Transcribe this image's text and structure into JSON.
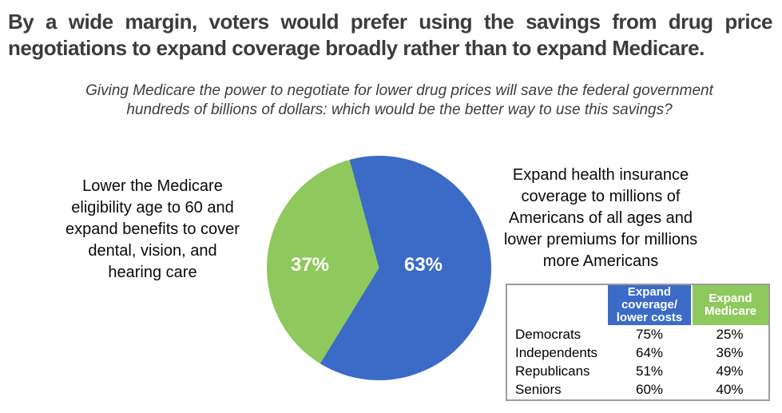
{
  "slide": {
    "title_line1": "By a wide margin, voters would prefer using the savings from drug price",
    "title_line2": "negotiations to expand coverage broadly rather than to expand Medicare.",
    "subtitle_line1": "Giving Medicare the power to negotiate for lower drug prices will save the federal government",
    "subtitle_line2": "hundreds of billions of dollars: which would be the better way to use this savings?"
  },
  "options": {
    "left_lines": [
      "Lower the Medicare",
      "eligibility age to 60 and",
      "expand benefits to cover",
      "dental, vision, and",
      "hearing care"
    ],
    "right_lines": [
      "Expand health insurance",
      "coverage to millions of",
      "Americans of all ages and",
      "lower premiums for millions",
      "more Americans"
    ]
  },
  "colors": {
    "blue": "#3B6BC7",
    "green": "#8FC95E",
    "title_gray": "#3C3C3C"
  },
  "table": {
    "col_blue_header": "Expand coverage/ lower costs",
    "col_green_header": "Expand Medicare",
    "rows": [
      {
        "label": "Democrats",
        "coverage": "75%",
        "medicare": "25%"
      },
      {
        "label": "Independents",
        "coverage": "64%",
        "medicare": "36%"
      },
      {
        "label": "Republicans",
        "coverage": "51%",
        "medicare": "49%"
      },
      {
        "label": "Seniors",
        "coverage": "60%",
        "medicare": "40%"
      }
    ]
  },
  "chart_data": [
    {
      "type": "pie",
      "title": "By a wide margin, voters would prefer using the savings from drug price negotiations to expand coverage broadly rather than to expand Medicare.",
      "subtitle": "Giving Medicare the power to negotiate for lower drug prices will save the federal government hundreds of billions of dollars: which would be the better way to use this savings?",
      "slices": [
        {
          "label": "Expand health insurance coverage to millions of Americans of all ages and lower premiums for millions more Americans",
          "value": 63,
          "color": "#3B6BC7"
        },
        {
          "label": "Lower the Medicare eligibility age to 60 and expand benefits to cover dental, vision, and hearing care",
          "value": 37,
          "color": "#8FC95E"
        }
      ],
      "data_labels": [
        "63%",
        "37%"
      ],
      "start_angle_deg": -15.2,
      "legend_position": "none"
    },
    {
      "type": "table",
      "columns": [
        "",
        "Expand coverage/ lower costs",
        "Expand Medicare"
      ],
      "rows": [
        [
          "Democrats",
          "75%",
          "25%"
        ],
        [
          "Independents",
          "64%",
          "36%"
        ],
        [
          "Republicans",
          "51%",
          "49%"
        ],
        [
          "Seniors",
          "60%",
          "40%"
        ]
      ]
    }
  ]
}
